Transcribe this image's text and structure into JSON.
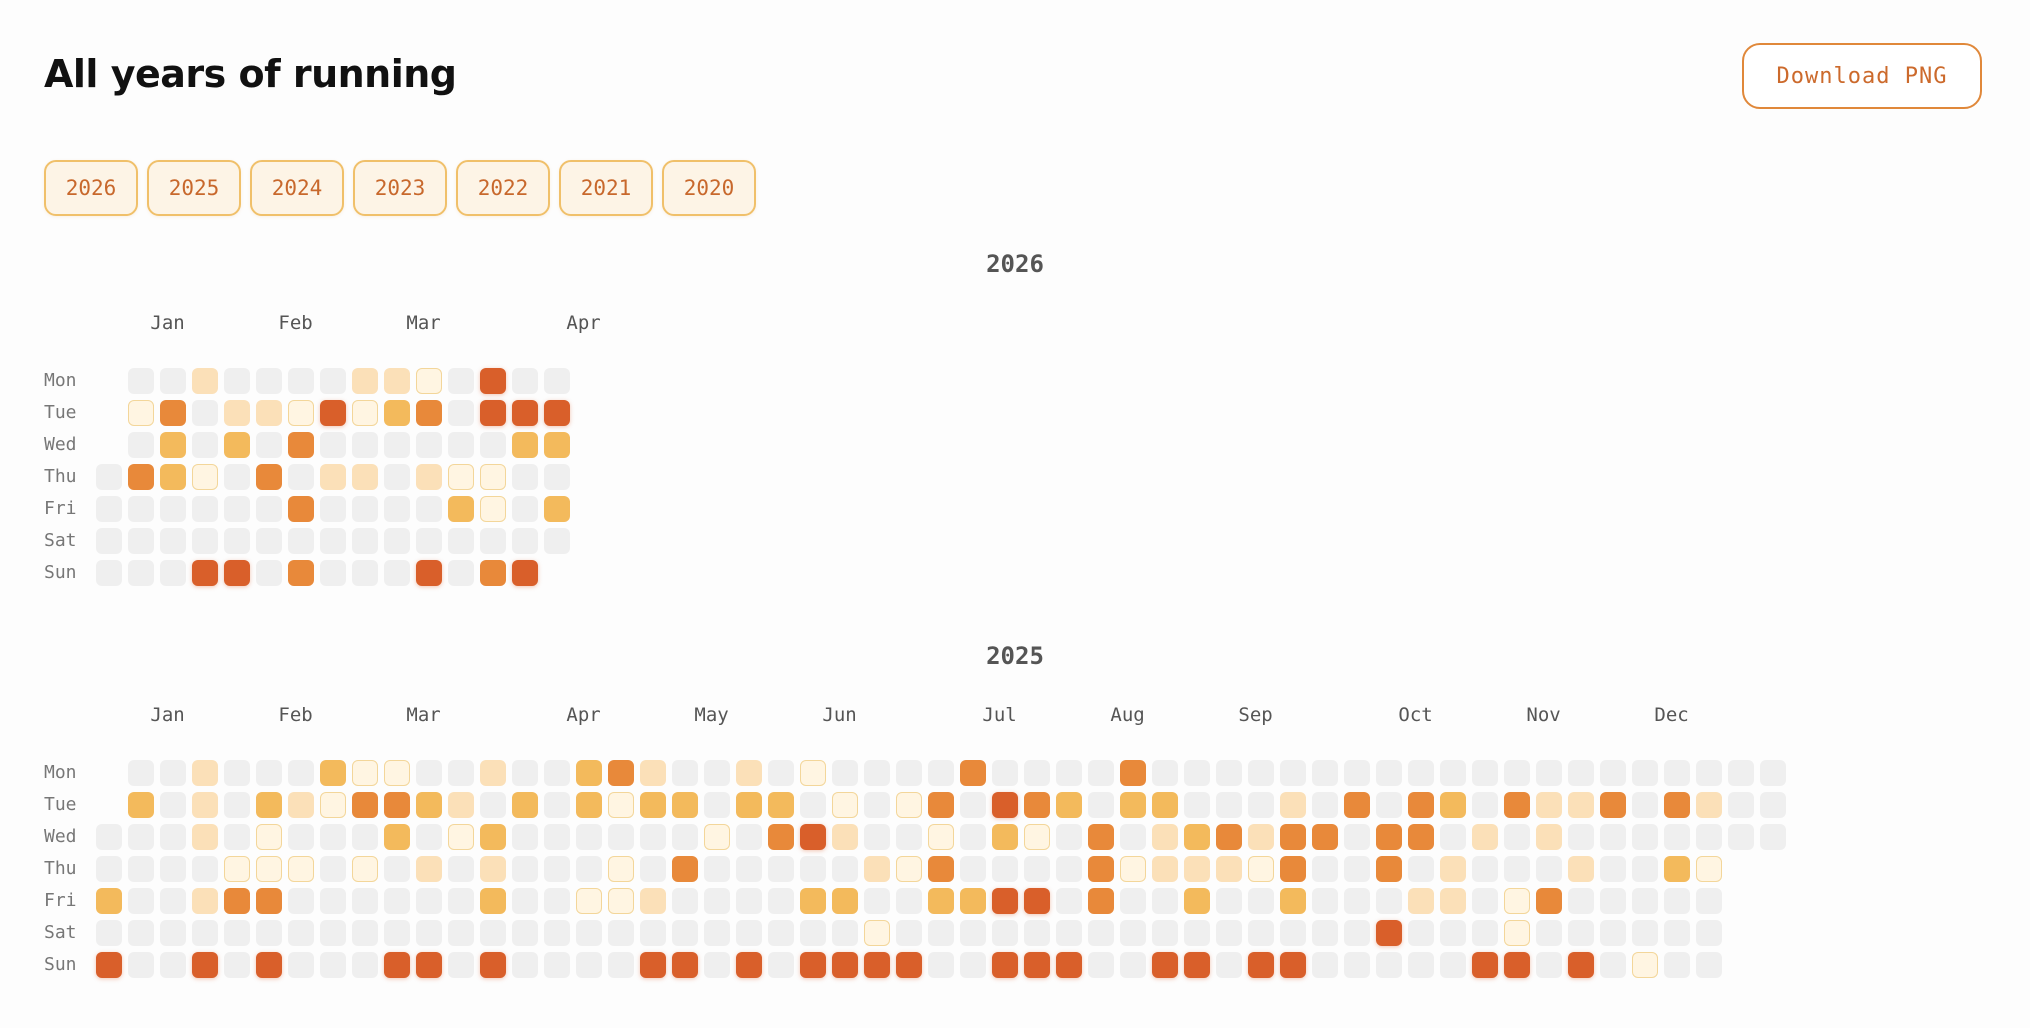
{
  "header": {
    "title": "All years of running",
    "download_label": "Download PNG"
  },
  "year_tabs": [
    "2026",
    "2025",
    "2024",
    "2023",
    "2022",
    "2021",
    "2020"
  ],
  "day_labels": [
    "Mon",
    "Tue",
    "Wed",
    "Thu",
    "Fri",
    "Sat",
    "Sun"
  ],
  "colors": {
    "empty": "#efefef",
    "level1": "#fff5e2",
    "level2": "#fbe0b8",
    "level3": "#f3ba5c",
    "level4": "#e8893a",
    "level5": "#d95f2a",
    "accent": "#e0883a"
  },
  "years": [
    {
      "year": "2026",
      "months": [
        {
          "label": "Jan",
          "week": 1.7
        },
        {
          "label": "Feb",
          "week": 5.7
        },
        {
          "label": "Mar",
          "week": 9.7
        },
        {
          "label": "Apr",
          "week": 14.7
        }
      ],
      "grid": [
        [
          "",
          "0",
          "0",
          "2",
          "0",
          "0",
          "0",
          "0",
          "2",
          "2",
          "1",
          "0",
          "5",
          "0",
          "0"
        ],
        [
          "",
          "1",
          "4",
          "0",
          "2",
          "2",
          "1",
          "5",
          "1",
          "3",
          "4",
          "0",
          "5",
          "5",
          "5"
        ],
        [
          "",
          "0",
          "3",
          "0",
          "3",
          "0",
          "4",
          "0",
          "0",
          "0",
          "0",
          "0",
          "0",
          "3",
          "3"
        ],
        [
          "0",
          "4",
          "3",
          "1",
          "0",
          "4",
          "0",
          "2",
          "2",
          "0",
          "2",
          "1",
          "1",
          "0",
          "0"
        ],
        [
          "0",
          "0",
          "0",
          "0",
          "0",
          "0",
          "4",
          "0",
          "0",
          "0",
          "0",
          "3",
          "1",
          "0",
          "3"
        ],
        [
          "0",
          "0",
          "0",
          "0",
          "0",
          "0",
          "0",
          "0",
          "0",
          "0",
          "0",
          "0",
          "0",
          "0",
          "0"
        ],
        [
          "0",
          "0",
          "0",
          "5",
          "5",
          "0",
          "4",
          "0",
          "0",
          "0",
          "5",
          "0",
          "4",
          "5",
          ""
        ]
      ]
    },
    {
      "year": "2025",
      "months": [
        {
          "label": "Jan",
          "week": 1.7
        },
        {
          "label": "Feb",
          "week": 5.7
        },
        {
          "label": "Mar",
          "week": 9.7
        },
        {
          "label": "Apr",
          "week": 14.7
        },
        {
          "label": "May",
          "week": 18.7
        },
        {
          "label": "Jun",
          "week": 22.7
        },
        {
          "label": "Jul",
          "week": 27.7
        },
        {
          "label": "Aug",
          "week": 31.7
        },
        {
          "label": "Sep",
          "week": 35.7
        },
        {
          "label": "Oct",
          "week": 40.7
        },
        {
          "label": "Nov",
          "week": 44.7
        },
        {
          "label": "Dec",
          "week": 48.7
        }
      ],
      "grid": [
        [
          "",
          "0",
          "0",
          "2",
          "0",
          "0",
          "0",
          "3",
          "1",
          "1",
          "0",
          "0",
          "2",
          "0",
          "0",
          "3",
          "4",
          "2",
          "0",
          "0",
          "2",
          "0",
          "1",
          "0",
          "0",
          "0",
          "0",
          "4",
          "0",
          "0",
          "0",
          "0",
          "4",
          "0",
          "0",
          "0",
          "0",
          "0",
          "0",
          "0",
          "0",
          "0",
          "0",
          "0",
          "0",
          "0",
          "0",
          "0",
          "0",
          "0",
          "0",
          "0",
          "0"
        ],
        [
          "",
          "3",
          "0",
          "2",
          "0",
          "3",
          "2",
          "1",
          "4",
          "4",
          "3",
          "2",
          "0",
          "3",
          "0",
          "3",
          "1",
          "3",
          "3",
          "0",
          "3",
          "3",
          "0",
          "1",
          "0",
          "1",
          "4",
          "0",
          "5",
          "4",
          "3",
          "0",
          "3",
          "3",
          "0",
          "0",
          "0",
          "2",
          "0",
          "4",
          "0",
          "4",
          "3",
          "0",
          "4",
          "2",
          "2",
          "4",
          "0",
          "4",
          "2",
          "0",
          "0"
        ],
        [
          "0",
          "0",
          "0",
          "2",
          "0",
          "1",
          "0",
          "0",
          "0",
          "3",
          "0",
          "1",
          "3",
          "0",
          "0",
          "0",
          "0",
          "0",
          "0",
          "1",
          "0",
          "4",
          "5",
          "2",
          "0",
          "0",
          "1",
          "0",
          "3",
          "1",
          "0",
          "4",
          "0",
          "2",
          "3",
          "4",
          "2",
          "4",
          "4",
          "0",
          "4",
          "4",
          "0",
          "2",
          "0",
          "2",
          "0",
          "0",
          "0",
          "0",
          "0",
          "0",
          "0"
        ],
        [
          "0",
          "0",
          "0",
          "0",
          "1",
          "1",
          "1",
          "0",
          "1",
          "0",
          "2",
          "0",
          "2",
          "0",
          "0",
          "0",
          "1",
          "0",
          "4",
          "0",
          "0",
          "0",
          "0",
          "0",
          "2",
          "1",
          "4",
          "0",
          "0",
          "0",
          "0",
          "4",
          "1",
          "2",
          "2",
          "2",
          "1",
          "4",
          "0",
          "0",
          "4",
          "0",
          "2",
          "0",
          "0",
          "0",
          "2",
          "0",
          "0",
          "3",
          "1",
          ""
        ],
        [
          "3",
          "0",
          "0",
          "2",
          "4",
          "4",
          "0",
          "0",
          "0",
          "0",
          "0",
          "0",
          "3",
          "0",
          "0",
          "1",
          "1",
          "2",
          "0",
          "0",
          "0",
          "0",
          "3",
          "3",
          "0",
          "0",
          "3",
          "3",
          "5",
          "5",
          "0",
          "4",
          "0",
          "0",
          "3",
          "0",
          "0",
          "3",
          "0",
          "0",
          "0",
          "2",
          "2",
          "0",
          "1",
          "4",
          "0",
          "0",
          "0",
          "0",
          "0",
          ""
        ],
        [
          "0",
          "0",
          "0",
          "0",
          "0",
          "0",
          "0",
          "0",
          "0",
          "0",
          "0",
          "0",
          "0",
          "0",
          "0",
          "0",
          "0",
          "0",
          "0",
          "0",
          "0",
          "0",
          "0",
          "0",
          "1",
          "0",
          "0",
          "0",
          "0",
          "0",
          "0",
          "0",
          "0",
          "0",
          "0",
          "0",
          "0",
          "0",
          "0",
          "0",
          "5",
          "0",
          "0",
          "0",
          "1",
          "0",
          "0",
          "0",
          "0",
          "0",
          "0",
          ""
        ],
        [
          "5",
          "0",
          "0",
          "5",
          "0",
          "5",
          "0",
          "0",
          "0",
          "5",
          "5",
          "0",
          "5",
          "0",
          "0",
          "0",
          "0",
          "5",
          "5",
          "0",
          "5",
          "0",
          "5",
          "5",
          "5",
          "5",
          "0",
          "0",
          "5",
          "5",
          "5",
          "0",
          "0",
          "5",
          "5",
          "0",
          "5",
          "5",
          "0",
          "0",
          "0",
          "0",
          "0",
          "5",
          "5",
          "0",
          "5",
          "0",
          "1",
          "0",
          "0",
          ""
        ]
      ]
    }
  ]
}
